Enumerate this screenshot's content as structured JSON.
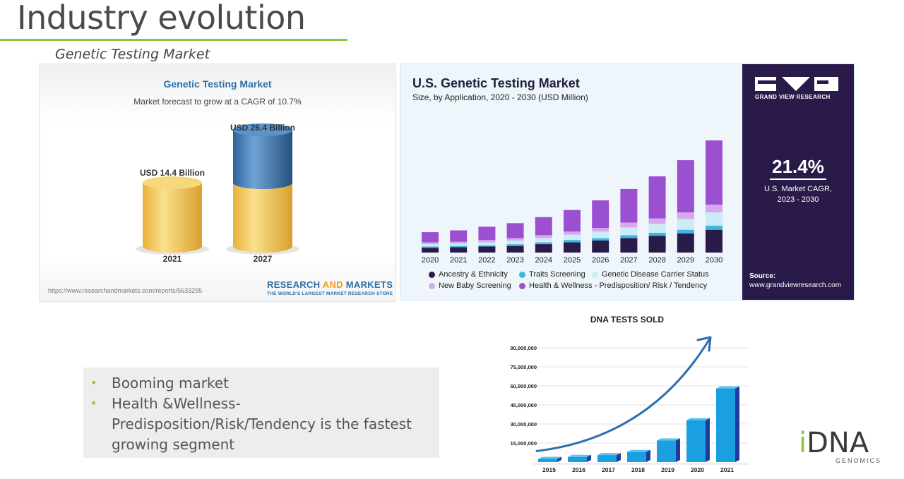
{
  "slide": {
    "title": "Industry evolution",
    "subtitle": "Genetic Testing Market"
  },
  "panel_rm": {
    "title": "Genetic Testing Market",
    "subtitle": "Market forecast to grow at a CAGR of 10.7%",
    "url": "https://www.researchandmarkets.com/reports/5633295",
    "brand_research": "RESEARCH ",
    "brand_and": "AND",
    "brand_markets": " MARKETS",
    "brand_tagline": "THE WORLD'S LARGEST MARKET RESEARCH STORE",
    "chart_data": {
      "type": "bar",
      "categories": [
        "2021",
        "2027"
      ],
      "values": [
        14.4,
        26.4
      ],
      "value_labels": [
        "USD 14.4 Billion",
        "USD 26.4 Billion"
      ],
      "colors": {
        "base": "#f2c24f",
        "growth": "#3b78b5"
      }
    }
  },
  "panel_gvr": {
    "title": "U.S. Genetic Testing Market",
    "subtitle": "Size, by Application, 2020 - 2030 (USD Million)",
    "logo_text": "GRAND VIEW RESEARCH",
    "cagr_value": "21.4%",
    "cagr_label_1": "U.S. Market CAGR,",
    "cagr_label_2": "2023 - 2030",
    "source_label": "Source:",
    "source_url": "www.grandviewresearch.com",
    "chart_data": {
      "type": "bar",
      "stacked": true,
      "categories": [
        "2020",
        "2021",
        "2022",
        "2023",
        "2024",
        "2025",
        "2026",
        "2027",
        "2028",
        "2029",
        "2030"
      ],
      "series": [
        {
          "name": "Ancestry & Ethnicity",
          "color": "#2a1a4a",
          "values": [
            8,
            9,
            10,
            11,
            14,
            17,
            20,
            24,
            28,
            32,
            38
          ]
        },
        {
          "name": "Traits Screening",
          "color": "#3fb6e0",
          "values": [
            2,
            2,
            2,
            3,
            3,
            4,
            4,
            5,
            5,
            6,
            7
          ]
        },
        {
          "name": "Genetic Disease Carrier Status",
          "color": "#c9ecf7",
          "values": [
            4,
            4,
            5,
            6,
            7,
            9,
            11,
            13,
            15,
            18,
            22
          ]
        },
        {
          "name": "New Baby Screening",
          "color": "#d7a8ec",
          "values": [
            3,
            3,
            4,
            4,
            5,
            5,
            6,
            8,
            9,
            11,
            13
          ]
        },
        {
          "name": "Health & Wellness - Predisposition/ Risk / Tendency",
          "color": "#9b4fd1",
          "values": [
            17,
            19,
            22,
            25,
            30,
            36,
            46,
            56,
            70,
            87,
            107
          ]
        }
      ]
    }
  },
  "bullets": [
    "Booming market",
    "Health &Wellness-Predisposition/Risk/Tendency is the fastest growing segment"
  ],
  "dna_chart": {
    "chart_data": {
      "type": "bar",
      "title": "DNA TESTS SOLD",
      "categories": [
        "2015",
        "2016",
        "2017",
        "2018",
        "2019",
        "2020",
        "2021"
      ],
      "values": [
        2500000,
        4000000,
        5500000,
        8000000,
        17000000,
        33000000,
        58000000
      ],
      "yticks": [
        15000000,
        30000000,
        45000000,
        60000000,
        75000000,
        90000000
      ],
      "ytick_labels": [
        "15,000,000",
        "30,000,000",
        "45,000,000",
        "60,000,000",
        "75,000,000",
        "90,000,000"
      ],
      "ylim": [
        0,
        100000000
      ],
      "colors": {
        "bar_front": "#1a9fe0",
        "bar_side": "#1f3b9e",
        "trend": "#2a6fb0"
      }
    }
  },
  "logo": {
    "i": "i",
    "dna": "DNA",
    "sub": "GENOMICS"
  }
}
